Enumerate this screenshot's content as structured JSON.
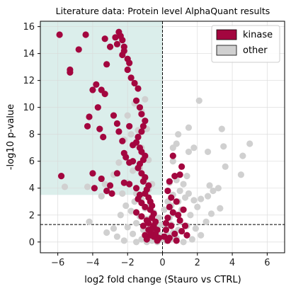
{
  "chart_data": {
    "type": "scatter",
    "title": "Literature data: Protein level AlphaQuant results",
    "xlabel": "log2 fold change (Stauro vs CTRL)",
    "ylabel": "-log10 p-value",
    "xlim": [
      -7,
      7
    ],
    "ylim": [
      -0.8,
      16.4
    ],
    "xticks": [
      -6,
      -4,
      -2,
      0,
      2,
      4,
      6
    ],
    "yticks": [
      0,
      2,
      4,
      6,
      8,
      10,
      12,
      14,
      16
    ],
    "grid": true,
    "legend": {
      "placement": "top-right"
    },
    "reference_lines": {
      "vertical_x": 0,
      "horizontal_y": 1.3
    },
    "highlight_region": {
      "x": [
        -7,
        0
      ],
      "y": [
        3.5,
        16.4
      ],
      "color": "#dbeeeb"
    },
    "series": [
      {
        "name": "other",
        "color": "#d0d0d0",
        "points": [
          [
            -1.6,
            10.3
          ],
          [
            -1.2,
            9.7
          ],
          [
            -2.0,
            9.4
          ],
          [
            -1.4,
            8.3
          ],
          [
            -1.8,
            8.0
          ],
          [
            -1.5,
            7.2
          ],
          [
            -2.2,
            7.6
          ],
          [
            -0.9,
            8.4
          ],
          [
            -1.0,
            10.6
          ],
          [
            -1.2,
            7.0
          ],
          [
            -2.5,
            5.9
          ],
          [
            -0.8,
            6.1
          ],
          [
            -1.3,
            5.5
          ],
          [
            -1.7,
            5.3
          ],
          [
            -2.8,
            5.0
          ],
          [
            -3.3,
            4.3
          ],
          [
            -4.3,
            4.1
          ],
          [
            -5.6,
            4.1
          ],
          [
            -1.0,
            4.7
          ],
          [
            -2.0,
            4.4
          ],
          [
            -0.6,
            4.3
          ],
          [
            -1.5,
            3.6
          ],
          [
            -3.5,
            3.4
          ],
          [
            -2.3,
            3.6
          ],
          [
            -0.8,
            3.9
          ],
          [
            -1.2,
            3.2
          ],
          [
            -1.6,
            3.0
          ],
          [
            -0.7,
            2.8
          ],
          [
            -2.1,
            2.7
          ],
          [
            -1.0,
            2.5
          ],
          [
            -1.8,
            2.3
          ],
          [
            -0.5,
            2.2
          ],
          [
            -1.3,
            1.9
          ],
          [
            -0.9,
            1.7
          ],
          [
            -0.4,
            1.5
          ],
          [
            -1.5,
            1.4
          ],
          [
            -0.7,
            1.2
          ],
          [
            -0.3,
            1.0
          ],
          [
            -1.1,
            0.9
          ],
          [
            -0.5,
            0.7
          ],
          [
            -0.2,
            0.6
          ],
          [
            -0.8,
            0.5
          ],
          [
            -0.4,
            0.3
          ],
          [
            -0.1,
            0.2
          ],
          [
            -0.6,
            0.1
          ],
          [
            -1.2,
            0.2
          ],
          [
            -0.9,
            0.0
          ],
          [
            -0.3,
            0.0
          ],
          [
            -2.4,
            2.0
          ],
          [
            -2.8,
            1.0
          ],
          [
            -2.0,
            1.1
          ],
          [
            -1.7,
            0.6
          ],
          [
            -4.2,
            1.5
          ],
          [
            -3.2,
            0.7
          ],
          [
            -2.6,
            0.4
          ],
          [
            -2.2,
            0.1
          ],
          [
            -1.5,
            0.0
          ],
          [
            -0.2,
            1.8
          ],
          [
            -0.1,
            1.3
          ],
          [
            -0.6,
            1.9
          ],
          [
            0.2,
            0.1
          ],
          [
            0.5,
            0.2
          ],
          [
            0.8,
            0.3
          ],
          [
            0.3,
            0.5
          ],
          [
            0.6,
            0.7
          ],
          [
            0.9,
            0.9
          ],
          [
            0.2,
            1.1
          ],
          [
            0.5,
            1.3
          ],
          [
            1.0,
            1.5
          ],
          [
            0.4,
            1.8
          ],
          [
            0.7,
            2.1
          ],
          [
            1.1,
            2.4
          ],
          [
            0.5,
            2.7
          ],
          [
            0.9,
            3.0
          ],
          [
            1.3,
            3.3
          ],
          [
            0.6,
            3.5
          ],
          [
            1.0,
            3.8
          ],
          [
            1.5,
            3.6
          ],
          [
            1.8,
            3.1
          ],
          [
            2.0,
            2.6
          ],
          [
            1.6,
            2.0
          ],
          [
            1.4,
            1.2
          ],
          [
            1.9,
            1.0
          ],
          [
            2.2,
            0.5
          ],
          [
            1.7,
            0.2
          ],
          [
            1.2,
            0.0
          ],
          [
            2.5,
            1.5
          ],
          [
            2.8,
            2.1
          ],
          [
            2.6,
            3.4
          ],
          [
            2.9,
            3.8
          ],
          [
            2.6,
            6.7
          ],
          [
            1.5,
            6.7
          ],
          [
            0.6,
            6.0
          ],
          [
            0.6,
            7.0
          ],
          [
            0.8,
            7.3
          ],
          [
            0.9,
            8.0
          ],
          [
            1.8,
            7.0
          ],
          [
            1.5,
            8.5
          ],
          [
            2.1,
            10.5
          ],
          [
            3.4,
            8.4
          ],
          [
            3.5,
            7.1
          ],
          [
            4.6,
            6.4
          ],
          [
            3.6,
            5.6
          ],
          [
            4.5,
            5.0
          ],
          [
            3.2,
            4.0
          ],
          [
            2.7,
            4.2
          ],
          [
            2.2,
            3.2
          ],
          [
            5.0,
            7.3
          ],
          [
            3.3,
            2.5
          ],
          [
            1.2,
            4.3
          ],
          [
            0.4,
            4.4
          ],
          [
            0.8,
            4.6
          ],
          [
            1.4,
            4.9
          ],
          [
            0.3,
            3.0
          ],
          [
            0.1,
            2.4
          ]
        ]
      },
      {
        "name": "kinase",
        "color": "#a3063f",
        "points": [
          [
            -2.5,
            15.6
          ],
          [
            -2.4,
            15.3
          ],
          [
            -2.3,
            15.0
          ],
          [
            -2.2,
            14.5
          ],
          [
            -2.2,
            14.2
          ],
          [
            -2.3,
            13.9
          ],
          [
            -2.0,
            13.6
          ],
          [
            -1.9,
            13.3
          ],
          [
            -2.6,
            14.7
          ],
          [
            -2.7,
            15.2
          ],
          [
            -2.0,
            12.8
          ],
          [
            -1.8,
            12.2
          ],
          [
            -1.6,
            11.8
          ],
          [
            -1.4,
            11.4
          ],
          [
            -1.5,
            10.5
          ],
          [
            -1.3,
            10.0
          ],
          [
            -1.2,
            9.5
          ],
          [
            -1.0,
            9.0
          ],
          [
            -1.1,
            8.6
          ],
          [
            -1.2,
            8.2
          ],
          [
            -1.4,
            7.8
          ],
          [
            -1.5,
            7.4
          ],
          [
            -1.3,
            7.0
          ],
          [
            -1.2,
            6.7
          ],
          [
            -1.0,
            6.4
          ],
          [
            -1.1,
            6.1
          ],
          [
            -1.3,
            5.8
          ],
          [
            -1.4,
            5.5
          ],
          [
            -1.2,
            5.1
          ],
          [
            -1.0,
            4.8
          ],
          [
            -1.1,
            4.5
          ],
          [
            -0.8,
            4.2
          ],
          [
            -0.9,
            3.9
          ],
          [
            -1.0,
            3.6
          ],
          [
            -0.8,
            3.3
          ],
          [
            -0.7,
            3.0
          ],
          [
            -0.6,
            2.7
          ],
          [
            -0.7,
            2.4
          ],
          [
            -0.5,
            2.1
          ],
          [
            -0.6,
            1.8
          ],
          [
            -0.4,
            1.5
          ],
          [
            -0.5,
            1.2
          ],
          [
            -0.3,
            0.9
          ],
          [
            -0.4,
            0.6
          ],
          [
            -0.2,
            0.3
          ],
          [
            -0.3,
            0.1
          ],
          [
            -0.5,
            0.4
          ],
          [
            -0.7,
            0.8
          ],
          [
            -0.6,
            1.0
          ],
          [
            -0.8,
            1.4
          ],
          [
            -5.9,
            15.4
          ],
          [
            -4.4,
            15.4
          ],
          [
            -4.8,
            14.3
          ],
          [
            -5.3,
            12.6
          ],
          [
            -5.3,
            12.8
          ],
          [
            -3.3,
            15.1
          ],
          [
            -3.0,
            14.5
          ],
          [
            -3.2,
            13.2
          ],
          [
            -3.8,
            11.7
          ],
          [
            -4.0,
            11.3
          ],
          [
            -3.5,
            11.3
          ],
          [
            -3.3,
            11.0
          ],
          [
            -3.7,
            10.0
          ],
          [
            -4.2,
            9.3
          ],
          [
            -4.3,
            8.6
          ],
          [
            -3.6,
            8.4
          ],
          [
            -3.4,
            7.8
          ],
          [
            -2.8,
            9.4
          ],
          [
            -2.6,
            8.8
          ],
          [
            -2.5,
            8.2
          ],
          [
            -2.3,
            7.5
          ],
          [
            -1.9,
            8.6
          ],
          [
            -1.7,
            7.2
          ],
          [
            -2.2,
            6.6
          ],
          [
            -2.1,
            6.3
          ],
          [
            -2.6,
            5.1
          ],
          [
            -2.2,
            4.4
          ],
          [
            -4.0,
            5.1
          ],
          [
            -5.8,
            4.9
          ],
          [
            -3.9,
            4.0
          ],
          [
            -3.5,
            4.7
          ],
          [
            -3.0,
            4.2
          ],
          [
            -3.2,
            3.8
          ],
          [
            -2.9,
            3.6
          ],
          [
            -1.9,
            5.9
          ],
          [
            -1.7,
            6.0
          ],
          [
            -1.5,
            4.0
          ],
          [
            -1.9,
            4.3
          ],
          [
            -1.3,
            3.5
          ],
          [
            -1.4,
            3.2
          ],
          [
            -1.2,
            2.9
          ],
          [
            -1.0,
            2.6
          ],
          [
            -1.5,
            2.2
          ],
          [
            -1.2,
            1.9
          ],
          [
            -0.9,
            1.6
          ],
          [
            -1.1,
            1.2
          ],
          [
            -0.8,
            0.9
          ],
          [
            -0.7,
            0.5
          ],
          [
            -0.9,
            0.2
          ],
          [
            -1.0,
            0.5
          ],
          [
            0.7,
            4.9
          ],
          [
            1.0,
            5.0
          ],
          [
            1.1,
            5.6
          ],
          [
            0.6,
            6.4
          ],
          [
            0.4,
            4.5
          ],
          [
            0.3,
            3.8
          ],
          [
            0.5,
            3.3
          ],
          [
            0.8,
            3.0
          ],
          [
            0.4,
            2.6
          ],
          [
            0.6,
            2.2
          ],
          [
            0.3,
            1.8
          ],
          [
            0.9,
            2.0
          ],
          [
            1.2,
            2.4
          ],
          [
            1.0,
            1.6
          ],
          [
            0.5,
            1.2
          ],
          [
            0.2,
            0.9
          ],
          [
            0.7,
            0.6
          ],
          [
            1.1,
            0.8
          ],
          [
            0.4,
            0.3
          ],
          [
            0.8,
            0.1
          ],
          [
            1.4,
            0.5
          ],
          [
            0.3,
            0.1
          ],
          [
            0.1,
            0.4
          ],
          [
            0.2,
            1.4
          ],
          [
            1.3,
            1.2
          ]
        ]
      }
    ]
  }
}
